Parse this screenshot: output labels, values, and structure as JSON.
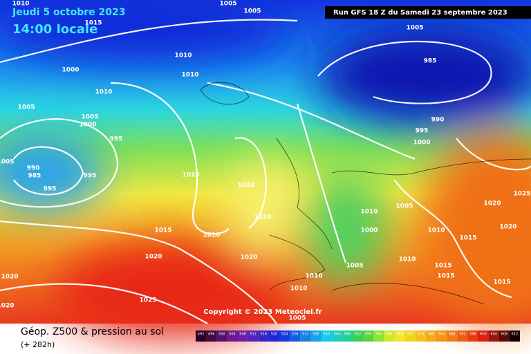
{
  "header": {
    "date": "Jeudi 5 octobre 2023",
    "time": "14:00 locale",
    "run": "Run GFS 18 Z du Samedi 23 septembre 2023"
  },
  "map": {
    "isobar_labels": [
      1010,
      1005,
      1005,
      1015,
      1005,
      1010,
      985,
      1000,
      1010,
      1010,
      1005,
      1005,
      1000,
      990,
      995,
      1000,
      995,
      1005,
      990,
      985,
      995,
      995,
      1010,
      1020,
      1025,
      1020,
      1005,
      1010,
      1020,
      1020,
      1000,
      1010,
      1015,
      1010,
      1015,
      1020,
      1020,
      1010,
      1005,
      1015,
      1020,
      1015,
      1010,
      1015,
      1010,
      1025,
      1020,
      1005
    ],
    "copyright": "Copyright © 2023 Meteociel.fr"
  },
  "footer": {
    "title": "Géop. Z500 & pression au sol",
    "lead": "(+ 282h)",
    "scale": [
      492,
      496,
      500,
      504,
      508,
      512,
      516,
      520,
      524,
      528,
      532,
      536,
      540,
      544,
      548,
      552,
      556,
      560,
      564,
      568,
      572,
      576,
      580,
      584,
      588,
      592,
      596,
      600,
      604,
      608,
      612
    ]
  }
}
